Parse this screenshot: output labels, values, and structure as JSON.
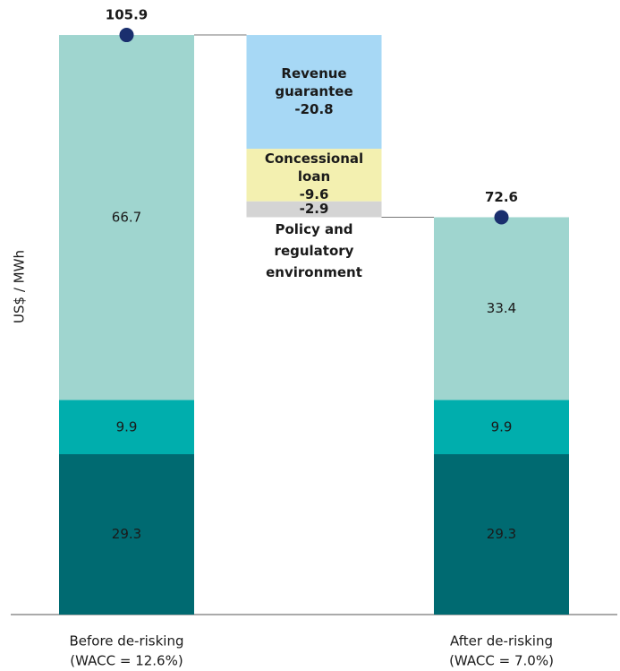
{
  "chart_data": {
    "type": "stacked-waterfall",
    "ylabel": "US$ / MWh",
    "ylim": [
      0,
      110
    ],
    "categories": [
      [
        "Before de-risking",
        "(WACC = 12.6%)"
      ],
      null,
      [
        "After de-risking",
        "(WACC = 7.0%)"
      ]
    ],
    "series": [
      {
        "color": "#006a71",
        "label_color": "#ffffff",
        "values": [
          29.3,
          null,
          29.3
        ]
      },
      {
        "color": "#00aead",
        "label_color": "#1a1a1a",
        "values": [
          9.9,
          null,
          9.9
        ]
      },
      {
        "color": "#9fd5cf",
        "label_color": "#1a1a1a",
        "values": [
          66.7,
          null,
          33.4
        ]
      }
    ],
    "totals": [
      105.9,
      null,
      72.6
    ],
    "total_color": "#1a2f6e",
    "steps": [
      {
        "label": [
          "Revenue",
          "guarantee"
        ],
        "value": -20.8,
        "color": "#a7d8f5"
      },
      {
        "label": [
          "Concessional",
          "loan"
        ],
        "value": -9.6,
        "color": "#f3f0b0"
      },
      {
        "label": [
          "Policy and",
          "regulatory",
          "environment"
        ],
        "value": -2.9,
        "color": "#d4d4d4"
      }
    ]
  }
}
